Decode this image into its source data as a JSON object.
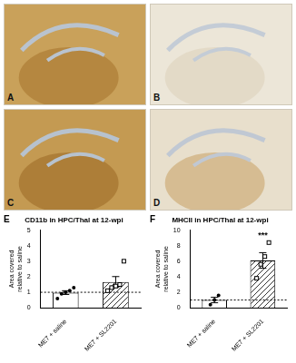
{
  "micrographs": {
    "panels": [
      "A",
      "B",
      "C",
      "D"
    ]
  },
  "chart_data": [
    {
      "panel": "E",
      "type": "bar",
      "title": "CD11b in HPC/Thal at 12-wpi",
      "y_label": "Area covered relative to saline",
      "categories": [
        "ME7 + saline",
        "ME7 + SL2201"
      ],
      "values": [
        0.98,
        1.66
      ],
      "errors": [
        0.12,
        0.35
      ],
      "points": [
        [
          0.6,
          0.9,
          1.0,
          1.1,
          1.3
        ],
        [
          1.1,
          1.3,
          1.4,
          1.5,
          3.0
        ]
      ],
      "reference_line": 1,
      "color": "#ffffff",
      "ylim": [
        0,
        5
      ],
      "yticks": [
        0,
        1,
        2,
        3,
        4,
        5
      ],
      "grid": false
    },
    {
      "panel": "F",
      "type": "bar",
      "title": "MHCII in HPC/Thal at 12-wpi",
      "y_label": "Area covered relative to saline",
      "categories": [
        "ME7 + saline",
        "ME7 + SL2201"
      ],
      "values": [
        1.0,
        6.1
      ],
      "errors": [
        0.35,
        1.0
      ],
      "points": [
        [
          0.4,
          1.0,
          1.6
        ],
        [
          3.8,
          5.6,
          6.6,
          8.4
        ]
      ],
      "reference_line": 1,
      "color": "#ffffff",
      "annotations": [
        {
          "text": "***",
          "category": "ME7 + SL2201"
        }
      ],
      "ylim": [
        0,
        10
      ],
      "yticks": [
        0,
        2,
        4,
        6,
        8,
        10
      ],
      "grid": false
    }
  ]
}
